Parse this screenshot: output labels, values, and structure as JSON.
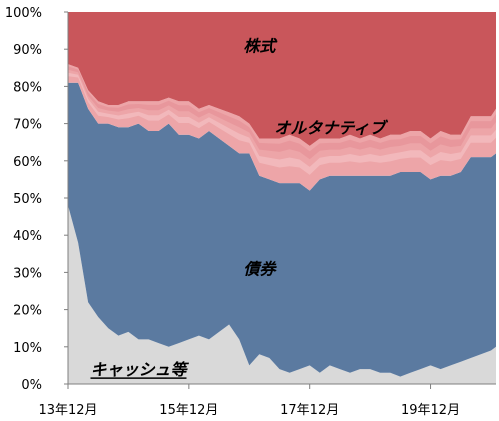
{
  "chart_data": {
    "type": "area",
    "stacked": true,
    "percent": true,
    "title": "",
    "xlabel": "",
    "ylabel": "",
    "ylim": [
      0,
      100
    ],
    "grid": false,
    "y_ticks": [
      "0%",
      "10%",
      "20%",
      "30%",
      "40%",
      "50%",
      "60%",
      "70%",
      "80%",
      "90%",
      "100%"
    ],
    "x_tick_labels": [
      {
        "label": "13年12月",
        "x": 0
      },
      {
        "label": "15年12月",
        "x": 24
      },
      {
        "label": "17年12月",
        "x": 48
      },
      {
        "label": "19年12月",
        "x": 72
      }
    ],
    "x_range": [
      0,
      85
    ],
    "x": [
      0,
      2,
      4,
      6,
      8,
      10,
      12,
      14,
      16,
      18,
      20,
      22,
      24,
      26,
      28,
      30,
      32,
      34,
      36,
      38,
      40,
      42,
      44,
      46,
      48,
      50,
      52,
      54,
      56,
      58,
      60,
      62,
      64,
      66,
      68,
      70,
      72,
      74,
      76,
      78,
      80,
      82,
      84,
      85
    ],
    "series": [
      {
        "name": "キャッシュ等",
        "color": "#d9d9d9",
        "values": [
          48,
          38,
          22,
          18,
          15,
          13,
          14,
          12,
          12,
          11,
          10,
          11,
          12,
          13,
          12,
          14,
          16,
          12,
          5,
          8,
          7,
          4,
          3,
          4,
          5,
          3,
          5,
          4,
          3,
          4,
          4,
          3,
          3,
          2,
          3,
          4,
          5,
          4,
          5,
          6,
          7,
          8,
          9,
          10
        ]
      },
      {
        "name": "債券",
        "color": "#5b7aa0",
        "values": [
          33,
          43,
          52,
          52,
          55,
          56,
          55,
          58,
          56,
          57,
          60,
          56,
          55,
          53,
          56,
          52,
          48,
          50,
          57,
          48,
          48,
          50,
          51,
          50,
          47,
          52,
          51,
          52,
          53,
          52,
          52,
          53,
          53,
          55,
          54,
          53,
          50,
          52,
          51,
          51,
          54,
          53,
          52,
          52
        ]
      },
      {
        "name": "オルタナティブ",
        "color": "#eda5a8",
        "label_color": "#e4878c",
        "values": [
          5,
          4,
          5,
          6,
          5,
          6,
          7,
          6,
          8,
          8,
          7,
          9,
          9,
          8,
          7,
          8,
          9,
          10,
          8,
          10,
          11,
          12,
          13,
          12,
          12,
          11,
          10,
          10,
          11,
          10,
          11,
          10,
          11,
          10,
          11,
          11,
          11,
          12,
          11,
          10,
          11,
          11,
          11,
          12
        ]
      },
      {
        "name": "株式",
        "color": "#c9565b",
        "values": [
          14,
          15,
          21,
          24,
          25,
          25,
          24,
          24,
          24,
          24,
          23,
          24,
          24,
          26,
          25,
          26,
          27,
          28,
          30,
          34,
          34,
          34,
          33,
          34,
          36,
          34,
          34,
          34,
          33,
          34,
          33,
          34,
          33,
          33,
          32,
          32,
          34,
          32,
          33,
          33,
          28,
          28,
          28,
          26
        ]
      }
    ],
    "series_labels": [
      {
        "series": "株式",
        "text": "株式",
        "x": 38,
        "y": 91
      },
      {
        "series": "オルタナティブ",
        "text": "オルタナティブ",
        "x": 52,
        "y": 69
      },
      {
        "series": "債券",
        "text": "債券",
        "x": 38,
        "y": 31
      },
      {
        "series": "キャッシュ等",
        "text": "キャッシュ等",
        "x": 14,
        "y": 4,
        "underline": true
      }
    ]
  }
}
